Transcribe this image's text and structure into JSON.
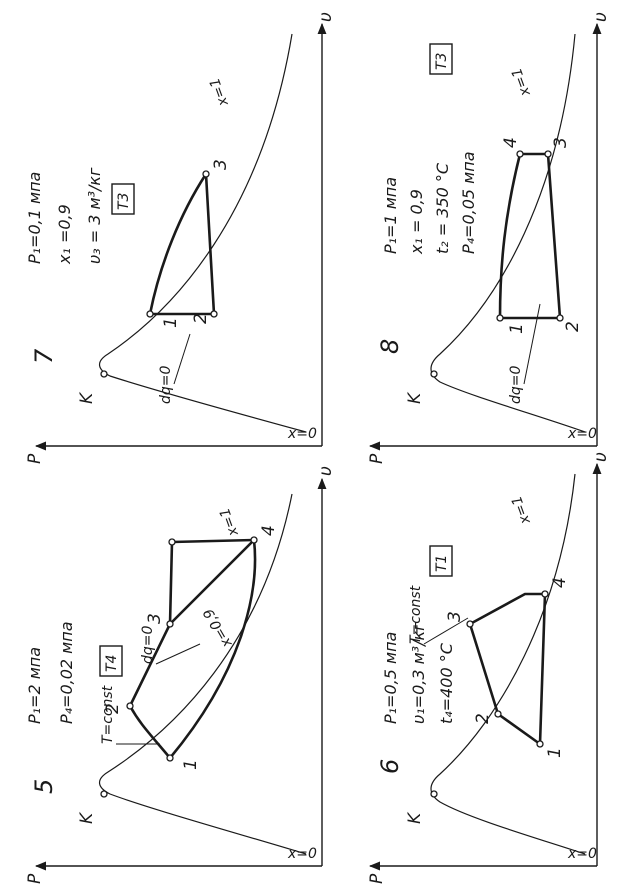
{
  "axes": {
    "p": "P",
    "v": "υ"
  },
  "curve_labels": {
    "x0": "x=0",
    "x1": "x=1",
    "k": "K"
  },
  "diagrams": [
    {
      "number": "5",
      "params": [
        "P₁=2 мпа",
        "P₄=0,02 мпа"
      ],
      "code": "T4",
      "annotations": [
        "T=const",
        "dq=0",
        "x=0,9"
      ],
      "points": [
        "1",
        "2",
        "3",
        "4"
      ]
    },
    {
      "number": "6",
      "params": [
        "P₁=0,5 мпа",
        "υ₁=0,3 м³/кг",
        "t₄=400 °C"
      ],
      "code": "T1",
      "annotations": [
        "T=const"
      ],
      "points": [
        "1",
        "2",
        "3",
        "4"
      ]
    },
    {
      "number": "7",
      "params": [
        "P₁=0,1 мпа",
        "x₁ =0,9",
        "υ₃ = 3 м³/кг"
      ],
      "code": "T3",
      "annotations": [
        "dq=0"
      ],
      "points": [
        "1",
        "2",
        "3"
      ]
    },
    {
      "number": "8",
      "params": [
        "P₁=1 мпа",
        "x₁ = 0,9",
        "t₂ = 350 °C",
        "P₄=0,05 мпа"
      ],
      "code": "T3",
      "annotations": [
        "dq=0"
      ],
      "points": [
        "1",
        "2",
        "3",
        "4"
      ]
    }
  ]
}
